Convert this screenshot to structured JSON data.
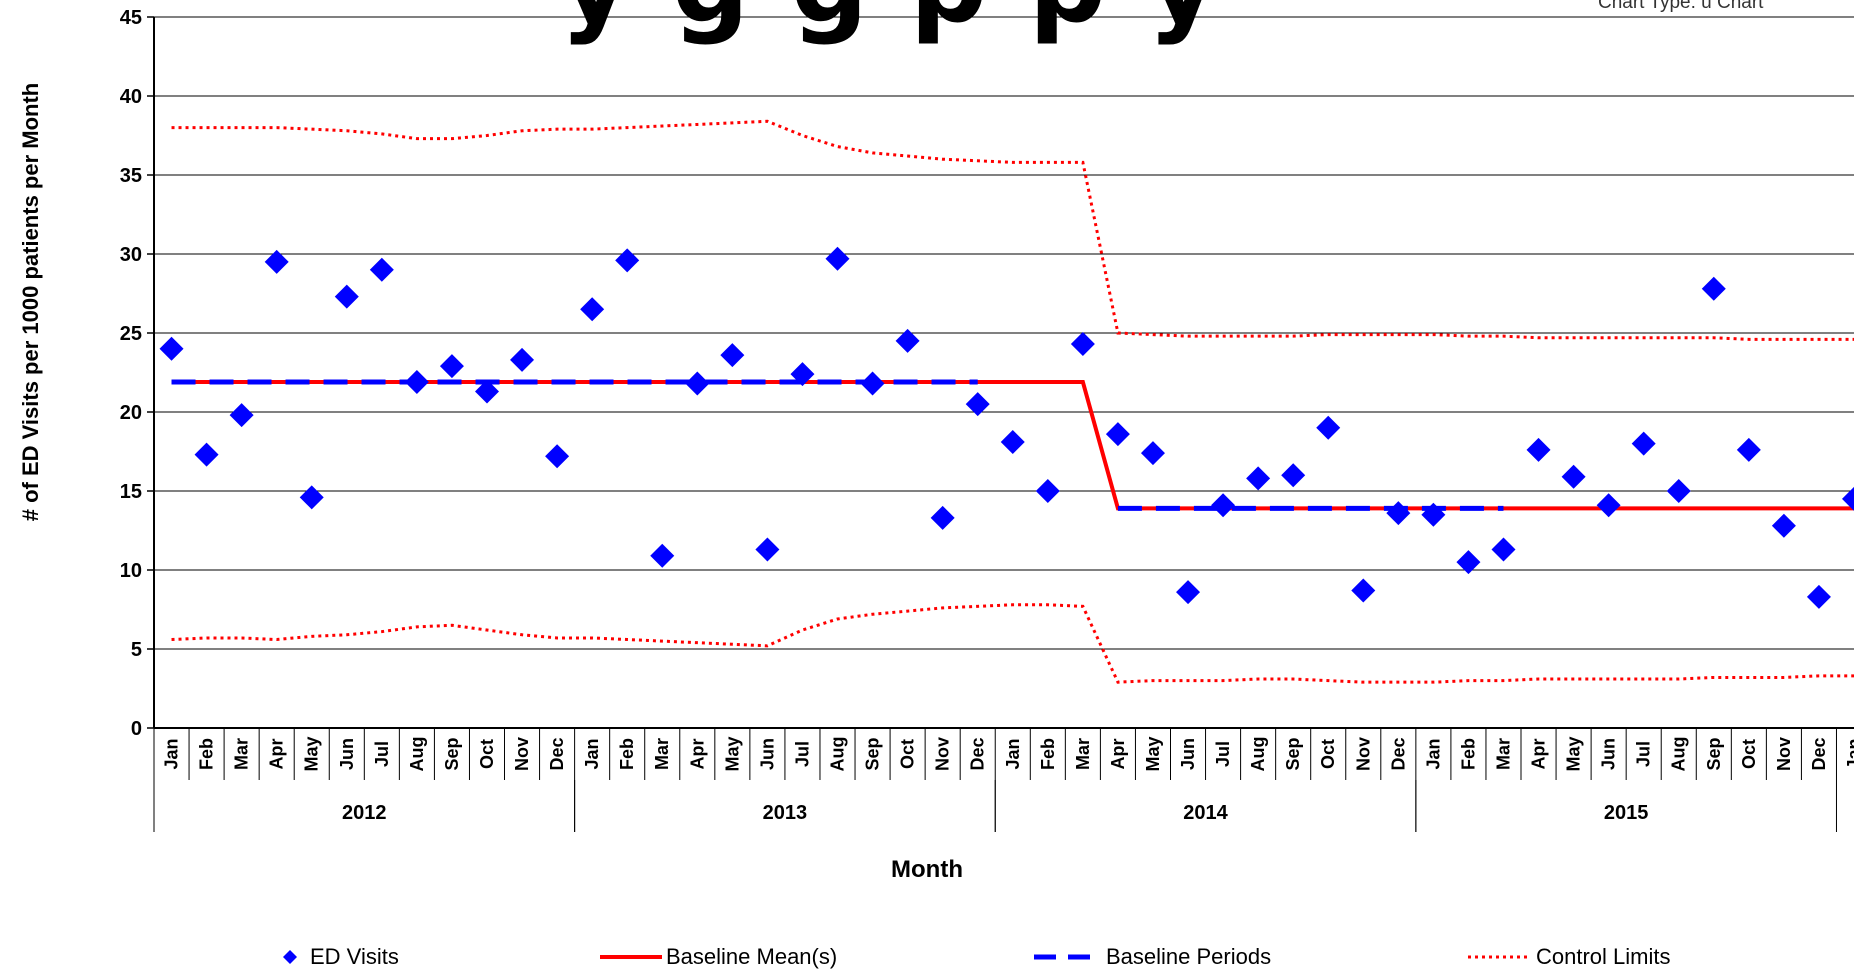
{
  "title_fragment": "y     g g  p  p y",
  "subtitle_fragment": "Chart Type: u Chart",
  "colors": {
    "ed": "#0000FF",
    "mean": "#FF0000",
    "baseline": "#0000FF",
    "limits": "#FF0000",
    "grid": "#000000"
  },
  "chart_data": {
    "type": "scatter",
    "xlabel": "Month",
    "ylabel": "# of ED Visits per 1000 patients per Month",
    "ylim": [
      0,
      45
    ],
    "yticks": [
      0,
      5,
      10,
      15,
      20,
      25,
      30,
      35,
      40,
      45
    ],
    "grid": true,
    "legend_position": "bottom",
    "months": [
      "Jan",
      "Feb",
      "Mar",
      "Apr",
      "May",
      "Jun",
      "Jul",
      "Aug",
      "Sep",
      "Oct",
      "Nov",
      "Dec",
      "Jan",
      "Feb",
      "Mar",
      "Apr",
      "May",
      "Jun",
      "Jul",
      "Aug",
      "Sep",
      "Oct",
      "Nov",
      "Dec",
      "Jan",
      "Feb",
      "Mar",
      "Apr",
      "May",
      "Jun",
      "Jul",
      "Aug",
      "Sep",
      "Oct",
      "Nov",
      "Dec",
      "Jan",
      "Feb",
      "Mar",
      "Apr",
      "May",
      "Jun",
      "Jul",
      "Aug",
      "Sep",
      "Oct",
      "Nov",
      "Dec",
      "Jan"
    ],
    "years": [
      {
        "label": "2012",
        "start": 0,
        "end": 11
      },
      {
        "label": "2013",
        "start": 12,
        "end": 23
      },
      {
        "label": "2014",
        "start": 24,
        "end": 35
      },
      {
        "label": "2015",
        "start": 36,
        "end": 47
      }
    ],
    "series": [
      {
        "name": "ED Visits",
        "kind": "points",
        "values": [
          24,
          17.3,
          19.8,
          29.5,
          14.6,
          27.3,
          29,
          21.9,
          22.9,
          21.3,
          23.3,
          17.2,
          26.5,
          29.6,
          10.9,
          21.8,
          23.6,
          11.3,
          22.4,
          29.7,
          21.8,
          24.5,
          13.3,
          20.5,
          18.1,
          15,
          24.3,
          18.6,
          17.4,
          8.6,
          14.1,
          15.8,
          16,
          19,
          8.7,
          13.6,
          13.5,
          10.5,
          11.3,
          17.6,
          15.9,
          14.1,
          18,
          15,
          27.8,
          17.6,
          12.8,
          8.3,
          14.5
        ]
      },
      {
        "name": "Baseline Mean(s)",
        "kind": "step",
        "values": [
          21.9,
          21.9,
          21.9,
          21.9,
          21.9,
          21.9,
          21.9,
          21.9,
          21.9,
          21.9,
          21.9,
          21.9,
          21.9,
          21.9,
          21.9,
          21.9,
          21.9,
          21.9,
          21.9,
          21.9,
          21.9,
          21.9,
          21.9,
          21.9,
          21.9,
          21.9,
          21.9,
          13.9,
          13.9,
          13.9,
          13.9,
          13.9,
          13.9,
          13.9,
          13.9,
          13.9,
          13.9,
          13.9,
          13.9,
          13.9,
          13.9,
          13.9,
          13.9,
          13.9,
          13.9,
          13.9,
          13.9,
          13.9,
          13.9
        ]
      },
      {
        "name": "Baseline Periods",
        "kind": "dashed",
        "segments": [
          {
            "from": 0,
            "to": 23,
            "value": 21.9
          },
          {
            "from": 27,
            "to": 38,
            "value": 13.9
          }
        ]
      },
      {
        "name": "Control Limits",
        "kind": "dotted",
        "upper": [
          38,
          38,
          38,
          38,
          37.9,
          37.8,
          37.6,
          37.3,
          37.3,
          37.5,
          37.8,
          37.9,
          37.9,
          38,
          38.1,
          38.2,
          38.3,
          38.4,
          37.5,
          36.8,
          36.4,
          36.2,
          36,
          35.9,
          35.8,
          35.8,
          35.8,
          25,
          24.9,
          24.8,
          24.8,
          24.8,
          24.8,
          24.9,
          24.9,
          24.9,
          24.9,
          24.8,
          24.8,
          24.7,
          24.7,
          24.7,
          24.7,
          24.7,
          24.7,
          24.6,
          24.6,
          24.6,
          24.6
        ],
        "lower": [
          5.6,
          5.7,
          5.7,
          5.6,
          5.8,
          5.9,
          6.1,
          6.4,
          6.5,
          6.2,
          5.9,
          5.7,
          5.7,
          5.6,
          5.5,
          5.4,
          5.3,
          5.2,
          6.2,
          6.9,
          7.2,
          7.4,
          7.6,
          7.7,
          7.8,
          7.8,
          7.7,
          2.9,
          3,
          3,
          3,
          3.1,
          3.1,
          3,
          2.9,
          2.9,
          2.9,
          3,
          3,
          3.1,
          3.1,
          3.1,
          3.1,
          3.1,
          3.2,
          3.2,
          3.2,
          3.3,
          3.3
        ]
      }
    ]
  }
}
